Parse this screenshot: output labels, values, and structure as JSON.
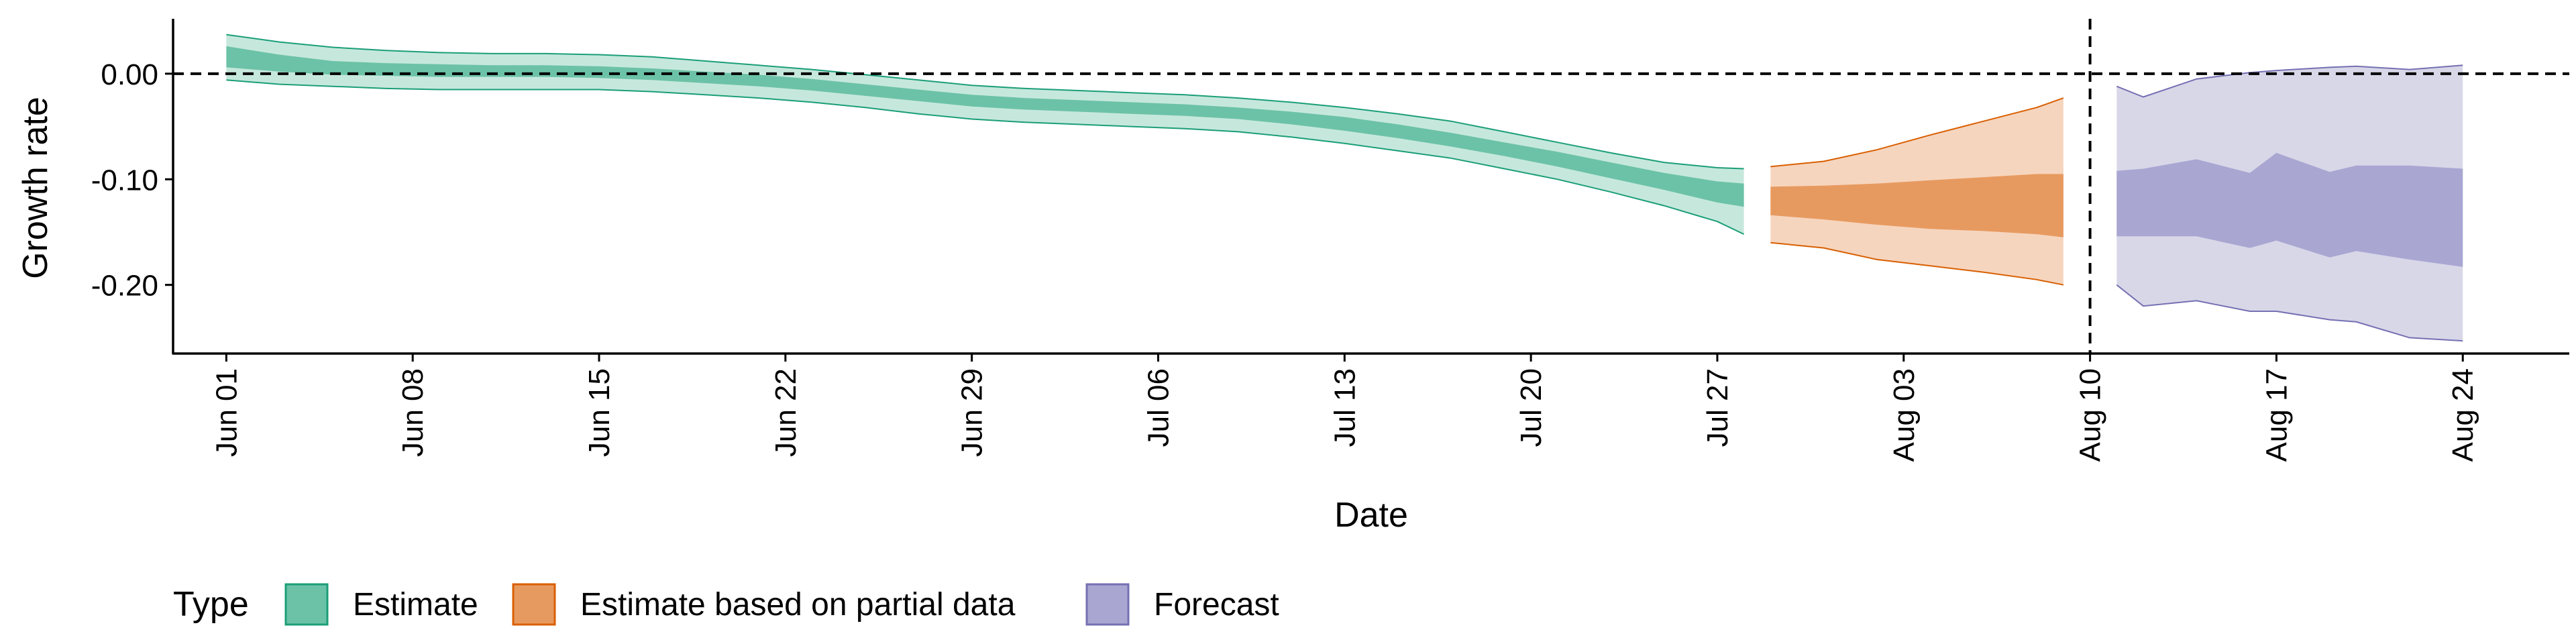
{
  "chart_data": {
    "type": "area",
    "title": "",
    "xlabel": "Date",
    "ylabel": "Growth rate",
    "ylim": [
      -0.265,
      0.052
    ],
    "xlim": [
      "2020-05-30",
      "2020-08-28"
    ],
    "y_ticks": [
      0.0,
      -0.1,
      -0.2
    ],
    "y_tick_labels": [
      "0.00",
      "-0.10",
      "-0.20"
    ],
    "x_ticks": [
      "2020-06-01",
      "2020-06-08",
      "2020-06-15",
      "2020-06-22",
      "2020-06-29",
      "2020-07-06",
      "2020-07-13",
      "2020-07-20",
      "2020-07-27",
      "2020-08-03",
      "2020-08-10",
      "2020-08-17",
      "2020-08-24"
    ],
    "x_tick_labels": [
      "Jun 01",
      "Jun 08",
      "Jun 15",
      "Jun 22",
      "Jun 29",
      "Jul 06",
      "Jul 13",
      "Jul 20",
      "Jul 27",
      "Aug 03",
      "Aug 10",
      "Aug 17",
      "Aug 24"
    ],
    "reference_lines": {
      "horizontal_y": 0.0,
      "vertical_x": "2020-08-10",
      "style": "dashed"
    },
    "grid": false,
    "legend": {
      "title": "Type",
      "position": "bottom-left",
      "entries": [
        "Estimate",
        "Estimate based on partial data",
        "Forecast"
      ]
    },
    "series": [
      {
        "name": "Estimate",
        "color": "#1b9e77",
        "fill_outer": "#c6e8dc",
        "fill_inner": "#6cc2a7",
        "x": [
          "2020-06-01",
          "2020-06-03",
          "2020-06-05",
          "2020-06-07",
          "2020-06-09",
          "2020-06-11",
          "2020-06-13",
          "2020-06-15",
          "2020-06-17",
          "2020-06-19",
          "2020-06-21",
          "2020-06-23",
          "2020-06-25",
          "2020-06-27",
          "2020-06-29",
          "2020-07-01",
          "2020-07-03",
          "2020-07-05",
          "2020-07-07",
          "2020-07-09",
          "2020-07-11",
          "2020-07-13",
          "2020-07-15",
          "2020-07-17",
          "2020-07-19",
          "2020-07-21",
          "2020-07-23",
          "2020-07-25",
          "2020-07-27",
          "2020-07-28"
        ],
        "lower_90": [
          -0.006,
          -0.01,
          -0.012,
          -0.014,
          -0.015,
          -0.015,
          -0.015,
          -0.015,
          -0.017,
          -0.02,
          -0.023,
          -0.027,
          -0.032,
          -0.038,
          -0.043,
          -0.046,
          -0.048,
          -0.05,
          -0.052,
          -0.055,
          -0.06,
          -0.066,
          -0.073,
          -0.08,
          -0.09,
          -0.1,
          -0.112,
          -0.125,
          -0.14,
          -0.152
        ],
        "lower_50": [
          0.006,
          0.002,
          -0.001,
          -0.002,
          -0.003,
          -0.003,
          -0.003,
          -0.004,
          -0.006,
          -0.009,
          -0.012,
          -0.016,
          -0.021,
          -0.026,
          -0.031,
          -0.034,
          -0.036,
          -0.038,
          -0.04,
          -0.043,
          -0.048,
          -0.054,
          -0.061,
          -0.069,
          -0.078,
          -0.088,
          -0.099,
          -0.11,
          -0.122,
          -0.126
        ],
        "upper_50": [
          0.026,
          0.018,
          0.012,
          0.01,
          0.009,
          0.008,
          0.008,
          0.007,
          0.005,
          0.002,
          -0.001,
          -0.005,
          -0.01,
          -0.015,
          -0.02,
          -0.023,
          -0.025,
          -0.027,
          -0.029,
          -0.032,
          -0.036,
          -0.041,
          -0.048,
          -0.056,
          -0.065,
          -0.074,
          -0.084,
          -0.094,
          -0.102,
          -0.104
        ],
        "upper_90": [
          0.037,
          0.03,
          0.025,
          0.022,
          0.02,
          0.019,
          0.019,
          0.018,
          0.016,
          0.012,
          0.008,
          0.004,
          -0.001,
          -0.006,
          -0.011,
          -0.014,
          -0.016,
          -0.018,
          -0.02,
          -0.023,
          -0.027,
          -0.032,
          -0.038,
          -0.045,
          -0.055,
          -0.065,
          -0.075,
          -0.084,
          -0.089,
          -0.09
        ]
      },
      {
        "name": "Estimate based on partial data",
        "color": "#d95f02",
        "fill_outer": "#f6d5be",
        "fill_inner": "#e79a60",
        "x": [
          "2020-07-29",
          "2020-07-31",
          "2020-08-02",
          "2020-08-04",
          "2020-08-06",
          "2020-08-08",
          "2020-08-09"
        ],
        "lower_90": [
          -0.16,
          -0.165,
          -0.176,
          -0.182,
          -0.188,
          -0.195,
          -0.2
        ],
        "lower_50": [
          -0.134,
          -0.138,
          -0.143,
          -0.147,
          -0.149,
          -0.152,
          -0.155
        ],
        "upper_50": [
          -0.107,
          -0.106,
          -0.104,
          -0.101,
          -0.098,
          -0.095,
          -0.095
        ],
        "upper_90": [
          -0.088,
          -0.083,
          -0.072,
          -0.058,
          -0.045,
          -0.032,
          -0.023
        ]
      },
      {
        "name": "Forecast",
        "color": "#7570b3",
        "fill_outer": "#d8d7e8",
        "fill_inner": "#a9a6d2",
        "x": [
          "2020-08-11",
          "2020-08-12",
          "2020-08-14",
          "2020-08-16",
          "2020-08-17",
          "2020-08-19",
          "2020-08-20",
          "2020-08-22",
          "2020-08-24"
        ],
        "lower_90": [
          -0.2,
          -0.22,
          -0.215,
          -0.225,
          -0.225,
          -0.233,
          -0.235,
          -0.25,
          -0.253
        ],
        "lower_50": [
          -0.154,
          -0.154,
          -0.154,
          -0.165,
          -0.158,
          -0.174,
          -0.168,
          -0.176,
          -0.183
        ],
        "upper_50": [
          -0.092,
          -0.09,
          -0.081,
          -0.094,
          -0.075,
          -0.093,
          -0.087,
          -0.087,
          -0.09
        ],
        "upper_90": [
          -0.012,
          -0.022,
          -0.005,
          0.001,
          0.003,
          0.006,
          0.007,
          0.004,
          0.008
        ]
      }
    ]
  }
}
